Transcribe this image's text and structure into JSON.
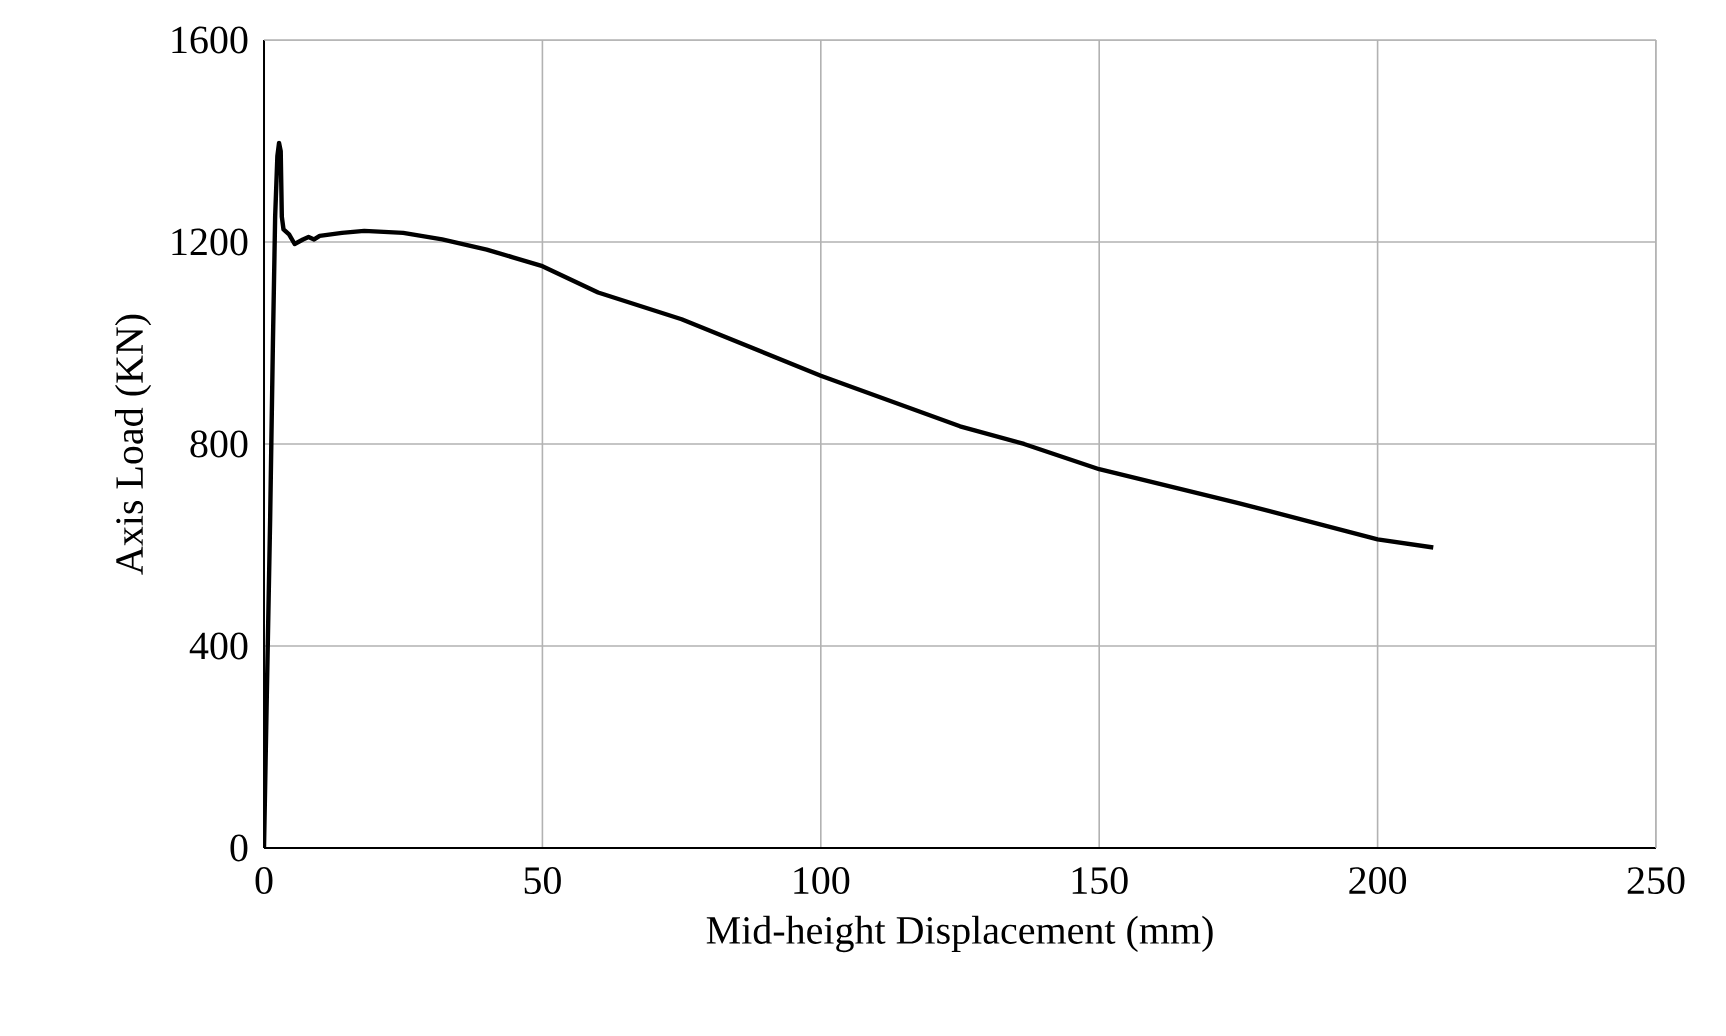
{
  "chart_data": {
    "type": "line",
    "xlabel": "Mid-height Displacement (mm)",
    "ylabel": "Axis Load (KN)",
    "xlim": [
      0,
      250
    ],
    "xticks": [
      0,
      50,
      100,
      150,
      200,
      250
    ],
    "ylim": [
      0,
      1600
    ],
    "yticks": [
      0,
      400,
      800,
      1200,
      1600
    ],
    "grid": true,
    "marker": "none",
    "line_style": "solid",
    "series": [
      {
        "color": "#000000",
        "x": [
          0,
          0.5,
          1.1,
          1.6,
          2.0,
          2.4,
          2.7,
          3.0,
          3.2,
          3.5,
          4.5,
          5.5,
          7,
          8,
          9,
          10,
          14,
          18,
          25,
          32,
          40,
          50,
          60,
          75,
          100,
          125,
          136.5,
          150,
          175,
          200,
          210
        ],
        "values": [
          0,
          300,
          650,
          1000,
          1250,
          1370,
          1396,
          1380,
          1250,
          1225,
          1215,
          1196,
          1205,
          1210,
          1205,
          1212,
          1218,
          1222,
          1218,
          1205,
          1185,
          1152,
          1100,
          1047,
          935,
          835,
          800,
          750,
          683,
          611,
          595
        ]
      }
    ]
  }
}
